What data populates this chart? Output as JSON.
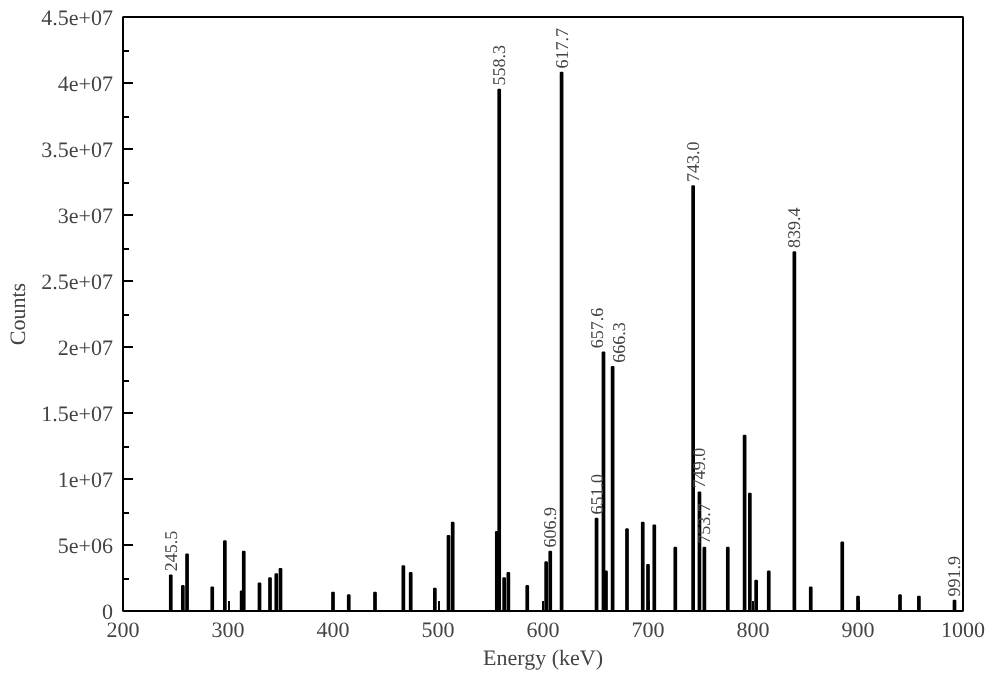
{
  "chart_data": {
    "type": "bar",
    "xlabel": "Energy (keV)",
    "ylabel": "Counts",
    "x": [
      245.5,
      257,
      261,
      285,
      297,
      313,
      315,
      330,
      340,
      346,
      350,
      400,
      415,
      440,
      467,
      474,
      497,
      510,
      514,
      556,
      558.3,
      563,
      567,
      585,
      603,
      606.9,
      617.7,
      651.0,
      657.6,
      660,
      666.3,
      680,
      695,
      700,
      706,
      726,
      743.0,
      749.0,
      753.7,
      776,
      792,
      797,
      803,
      815,
      839.4,
      855,
      885,
      900,
      940,
      958,
      991.9
    ],
    "values": [
      2700000,
      1900000,
      4300000,
      1800000,
      5300000,
      1500000,
      4500000,
      2100000,
      2500000,
      2800000,
      3200000,
      1400000,
      1200000,
      1400000,
      3400000,
      2900000,
      1700000,
      5700000,
      6700000,
      6000000,
      39500000,
      2500000,
      2900000,
      1900000,
      3700000,
      4500000,
      40800000,
      7000000,
      19600000,
      3000000,
      18500000,
      6200000,
      6700000,
      3500000,
      6500000,
      4800000,
      32200000,
      9000000,
      4800000,
      4800000,
      13300000,
      8900000,
      2300000,
      3000000,
      27200000,
      1800000,
      5200000,
      1100000,
      1200000,
      1100000,
      800000
    ],
    "color": "#000000",
    "xlim": [
      200,
      1000
    ],
    "ylim": [
      0,
      45000000
    ],
    "xticks": [
      200,
      300,
      400,
      500,
      600,
      700,
      800,
      900,
      1000
    ],
    "yticks": [
      {
        "value": 0,
        "label": "0"
      },
      {
        "value": 5000000,
        "label": "5e+06"
      },
      {
        "value": 10000000,
        "label": "1e+07"
      },
      {
        "value": 15000000,
        "label": "1.5e+07"
      },
      {
        "value": 20000000,
        "label": "2e+07"
      },
      {
        "value": 25000000,
        "label": "2.5e+07"
      },
      {
        "value": 30000000,
        "label": "3e+07"
      },
      {
        "value": 35000000,
        "label": "3.5e+07"
      },
      {
        "value": 40000000,
        "label": "4e+07"
      },
      {
        "value": 45000000,
        "label": "4.5e+07"
      }
    ],
    "grid": false,
    "annotations": [
      {
        "text": "245.5",
        "x": 245.5,
        "y": 2700000
      },
      {
        "text": "558.3",
        "x": 558.3,
        "y": 39500000
      },
      {
        "text": "606.9",
        "x": 606.9,
        "y": 4500000
      },
      {
        "text": "617.7",
        "x": 617.7,
        "y": 40800000
      },
      {
        "text": "651.0",
        "x": 651.0,
        "y": 7000000
      },
      {
        "text": "657.6",
        "x": 657.6,
        "y": 19600000
      },
      {
        "text": "666.3",
        "x": 666.3,
        "y": 18500000
      },
      {
        "text": "743.0",
        "x": 743.0,
        "y": 32200000
      },
      {
        "text": "749.0",
        "x": 749.0,
        "y": 9000000
      },
      {
        "text": "753.7",
        "x": 753.7,
        "y": 4800000
      },
      {
        "text": "839.4",
        "x": 839.4,
        "y": 27200000
      },
      {
        "text": "991.9",
        "x": 991.9,
        "y": 800000
      }
    ]
  }
}
